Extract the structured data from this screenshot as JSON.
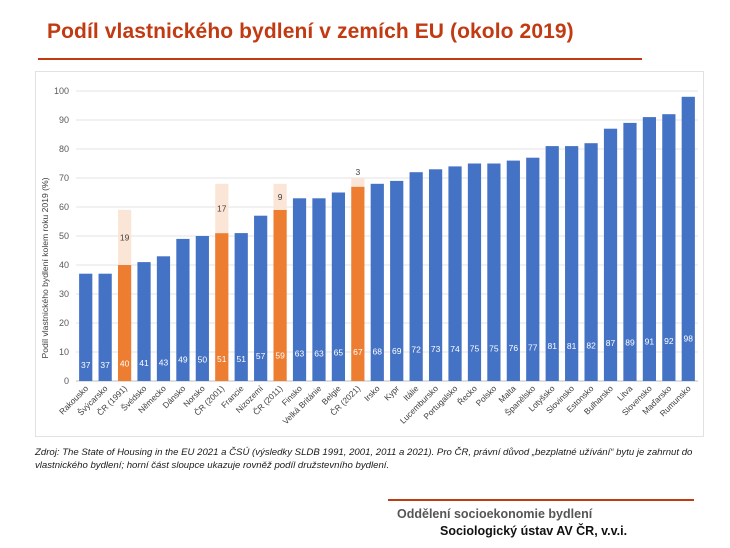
{
  "title": "Podíl vlastnického bydlení v zemích EU (okolo 2019)",
  "source_note": "Zdroj: The State of Housing in the EU 2021 a ČSÚ (výsledky SLDB 1991, 2001, 2011 a 2021). Pro ČR, právní důvod „bezplatné užívání“ bytu je zahrnut do vlastnického bydlení; horní část sloupce ukazuje rovněž podíl družstevního bydlení.",
  "footer": {
    "department": "Oddělení socioekonomie bydlení",
    "institute": "Sociologický ústav AV ČR, v.v.i."
  },
  "colors": {
    "bar_eu": "#4472c4",
    "bar_cz": "#ed7d31",
    "bar_cz_coop": "#fbe5d6",
    "accent": "#c23a12"
  },
  "chart_data": {
    "type": "bar",
    "stacked": true,
    "ylabel": "Podíl vlastnického bydlení kolem roku 2019 (%)",
    "ylim": [
      0,
      100
    ],
    "yticks": [
      0,
      10,
      20,
      30,
      40,
      50,
      60,
      70,
      80,
      90,
      100
    ],
    "grid": true,
    "categories": [
      "Rakousko",
      "Švýcarsko",
      "ČR (1991)",
      "Švédsko",
      "Německo",
      "Dánsko",
      "Norsko",
      "ČR (2001)",
      "Francie",
      "Nizozemí",
      "ČR (2011)",
      "Finsko",
      "Velká Británie",
      "Belgie",
      "ČR (2021)",
      "Irsko",
      "Kypr",
      "Itálie",
      "Lucembursko",
      "Portugalsko",
      "Řecko",
      "Polsko",
      "Malta",
      "Španělsko",
      "Lotyšsko",
      "Slovinsko",
      "Estonsko",
      "Bulharsko",
      "Litva",
      "Slovensko",
      "Maďarsko",
      "Rumunsko"
    ],
    "series": [
      {
        "values": [
          37,
          37,
          40,
          41,
          43,
          49,
          50,
          51,
          51,
          57,
          59,
          63,
          63,
          65,
          67,
          68,
          69,
          72,
          73,
          74,
          75,
          75,
          76,
          77,
          81,
          81,
          82,
          87,
          89,
          91,
          92,
          98
        ]
      },
      {
        "values": [
          null,
          null,
          19,
          null,
          null,
          null,
          null,
          17,
          null,
          null,
          9,
          null,
          null,
          null,
          3,
          null,
          null,
          null,
          null,
          null,
          null,
          null,
          null,
          null,
          null,
          null,
          null,
          null,
          null,
          null,
          null,
          null
        ]
      }
    ],
    "highlight": [
      "ČR (1991)",
      "ČR (2001)",
      "ČR (2011)",
      "ČR (2021)"
    ]
  }
}
